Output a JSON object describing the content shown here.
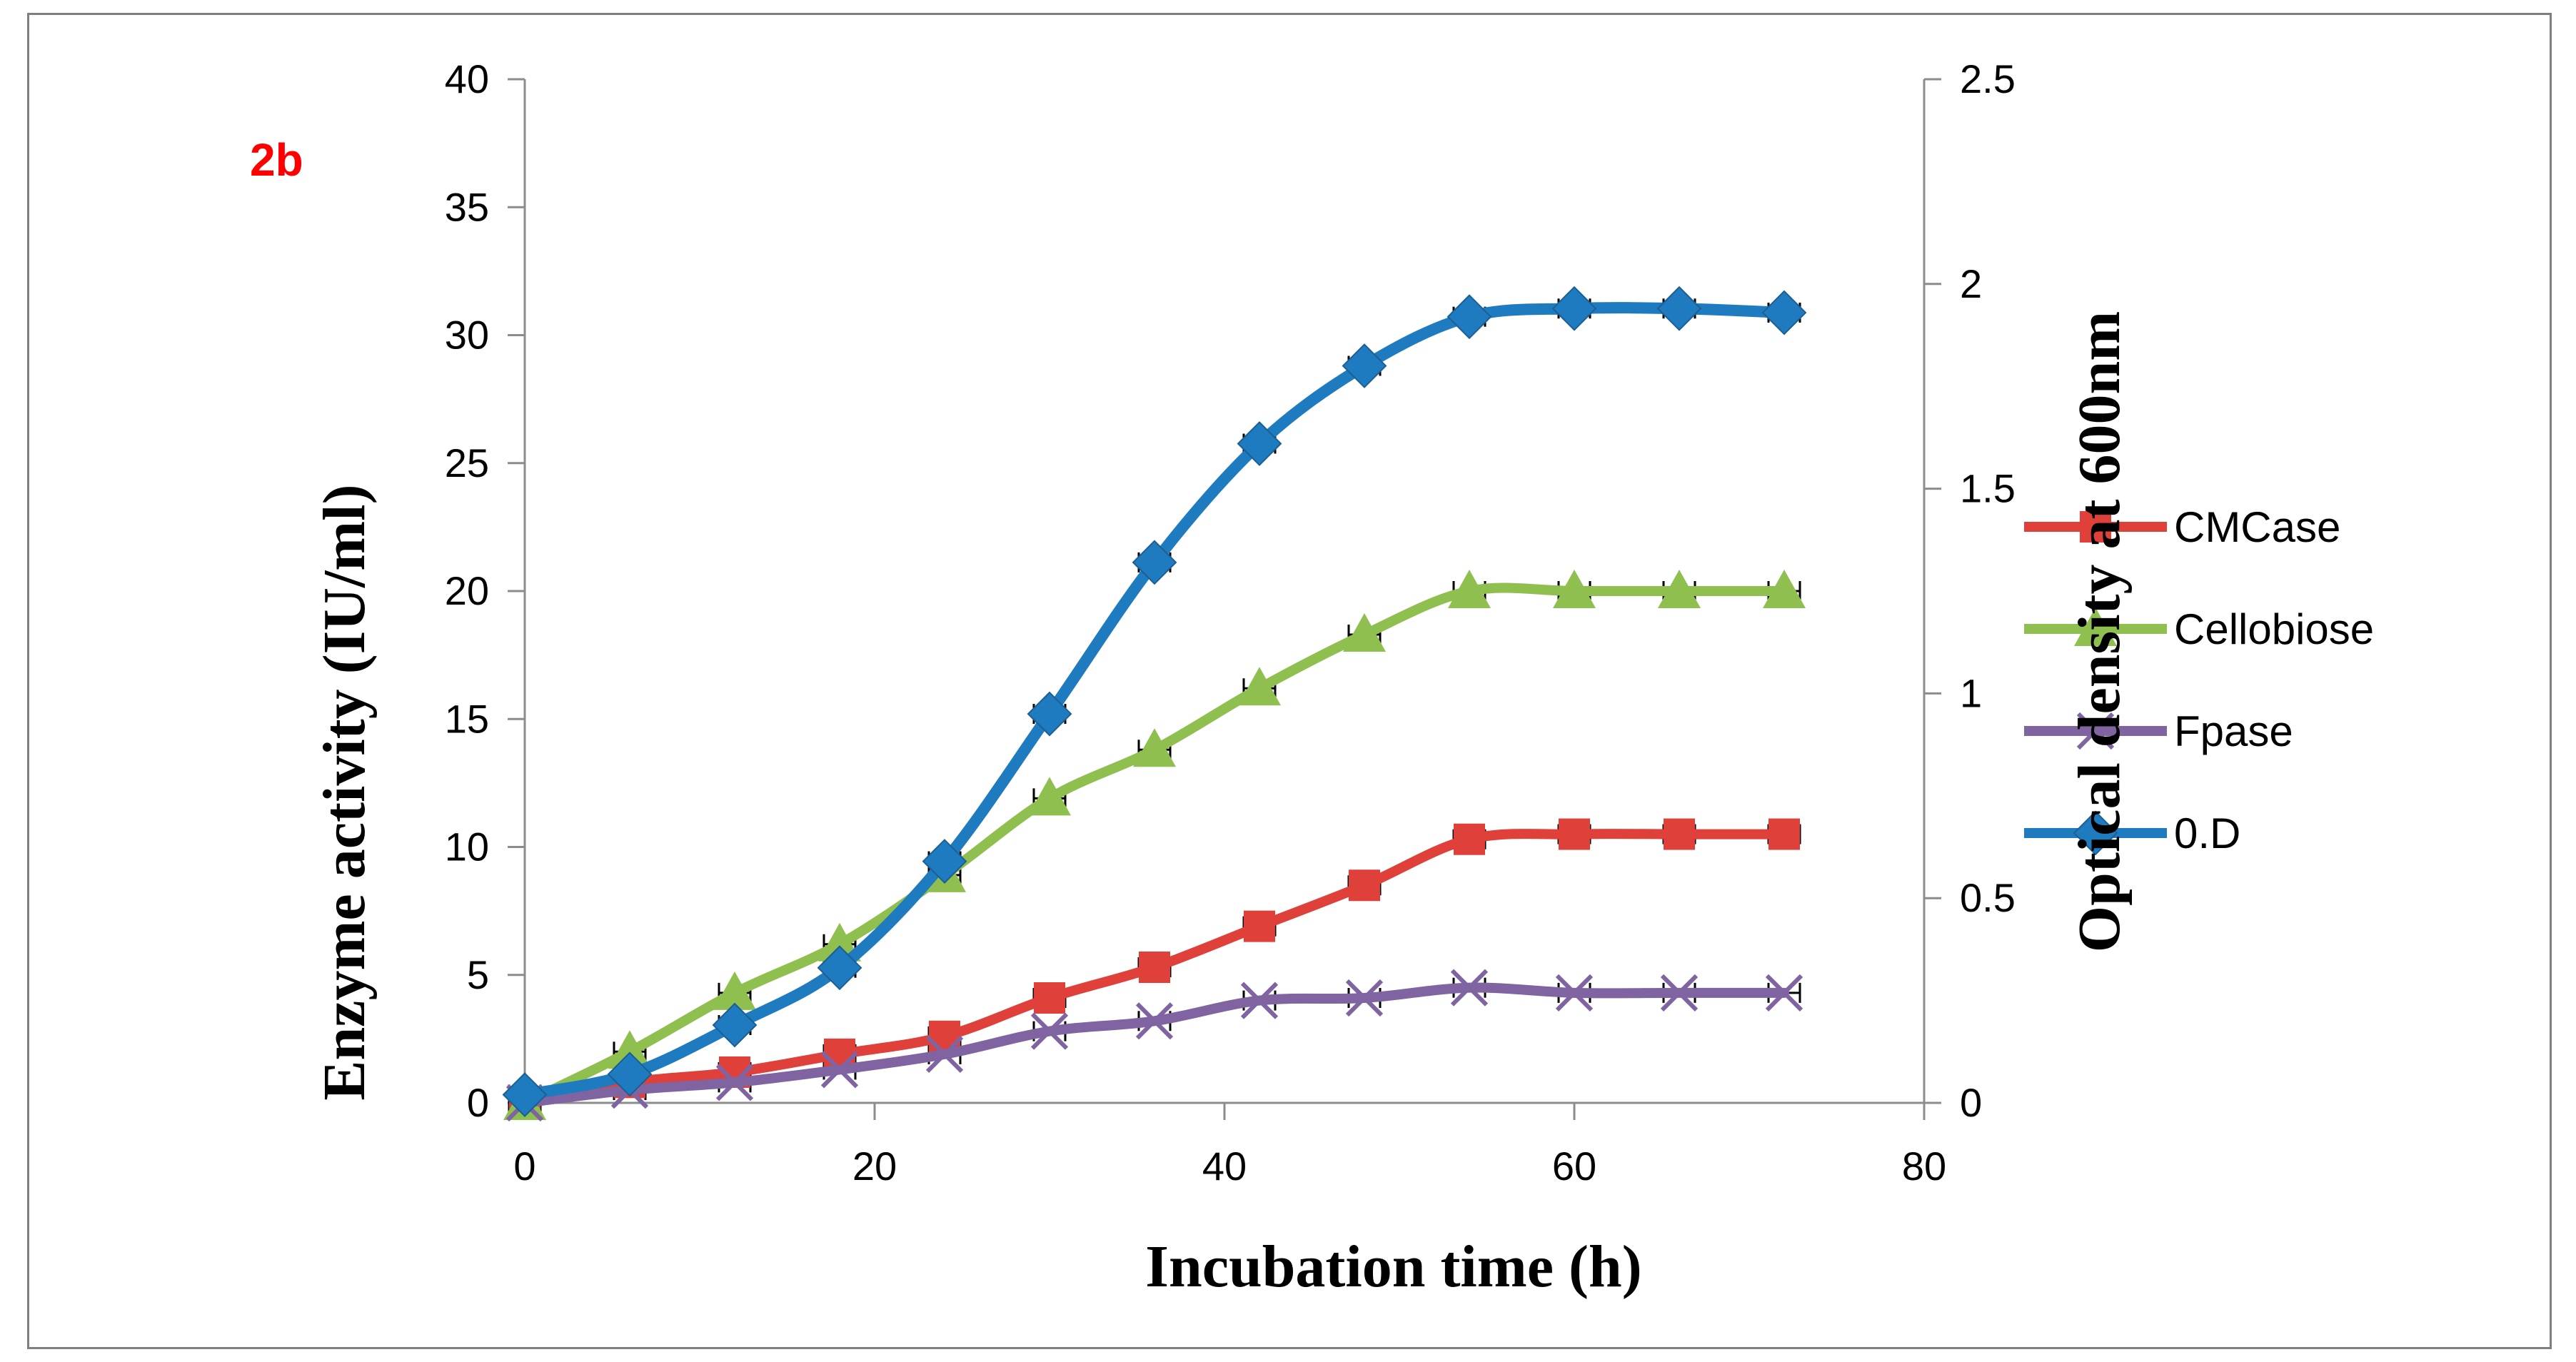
{
  "chart_data": {
    "type": "line",
    "panel_label": "2b",
    "xlabel": "Incubation time (h)",
    "ylabel": "Enzyme activity (IU/ml)",
    "y2label": "Optical density at 600nm",
    "xlim": [
      0,
      80
    ],
    "ylim": [
      0,
      40
    ],
    "y2lim": [
      0,
      2.5
    ],
    "xticks": [
      "0",
      "20",
      "40",
      "60",
      "80"
    ],
    "yticks": [
      "0",
      "5",
      "10",
      "15",
      "20",
      "25",
      "30",
      "35",
      "40"
    ],
    "y2ticks": [
      "0",
      "0.5",
      "1",
      "1.5",
      "2",
      "2.5"
    ],
    "grid": false,
    "legend_position": "right",
    "x": [
      0,
      6,
      12,
      18,
      24,
      30,
      36,
      42,
      48,
      54,
      60,
      66,
      72
    ],
    "series": [
      {
        "name": "CMCase",
        "axis": "left",
        "marker": "square",
        "color": "#e0403a",
        "values": [
          0,
          0.8,
          1.2,
          1.9,
          2.6,
          4.1,
          5.3,
          6.9,
          8.5,
          10.3,
          10.5,
          10.5,
          10.5
        ]
      },
      {
        "name": "Cellobiose",
        "axis": "left",
        "marker": "triangle",
        "color": "#8fc04f",
        "values": [
          0,
          2.0,
          4.3,
          6.2,
          8.9,
          11.9,
          13.8,
          16.2,
          18.3,
          20.0,
          20.0,
          20.0,
          20.0
        ]
      },
      {
        "name": "Fpase",
        "axis": "left",
        "marker": "cross",
        "color": "#8064a2",
        "values": [
          0,
          0.5,
          0.8,
          1.3,
          1.9,
          2.8,
          3.2,
          4.0,
          4.1,
          4.5,
          4.3,
          4.3,
          4.3
        ]
      },
      {
        "name": "0.D",
        "axis": "right",
        "marker": "diamond",
        "color": "#1f7bbf",
        "values": [
          0.02,
          0.07,
          0.19,
          0.33,
          0.59,
          0.95,
          1.32,
          1.61,
          1.8,
          1.92,
          1.94,
          1.94,
          1.93
        ]
      }
    ]
  }
}
